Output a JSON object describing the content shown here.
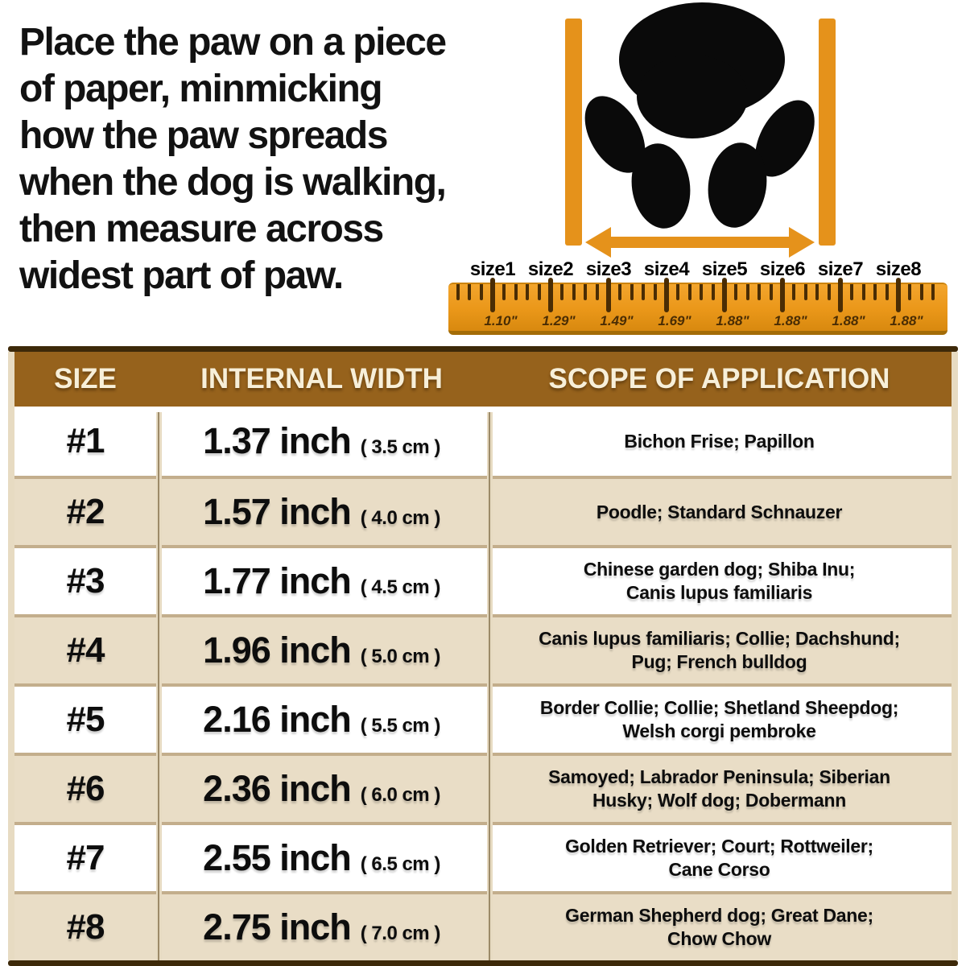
{
  "instructions": {
    "lines": [
      "Place the paw on a piece",
      "of paper, minmicking",
      "how the paw spreads",
      "when the dog is walking,",
      "then measure across",
      "widest part of paw."
    ]
  },
  "icons": {
    "paw_print": "black dog paw print",
    "width_arrow": "double-headed horizontal arrow",
    "measure_bars": "two vertical measuring bars"
  },
  "ruler": {
    "sizes": [
      {
        "label": "size1",
        "value": "1.10\""
      },
      {
        "label": "size2",
        "value": "1.29\""
      },
      {
        "label": "size3",
        "value": "1.49\""
      },
      {
        "label": "size4",
        "value": "1.69\""
      },
      {
        "label": "size5",
        "value": "1.88\""
      },
      {
        "label": "size6",
        "value": "1.88\""
      },
      {
        "label": "size7",
        "value": "1.88\""
      },
      {
        "label": "size8",
        "value": "1.88\""
      }
    ]
  },
  "table": {
    "headers": [
      "SIZE",
      "INTERNAL WIDTH",
      "SCOPE OF APPLICATION"
    ],
    "rows": [
      {
        "size": "#1",
        "inch": "1.37 inch",
        "cm": "( 3.5 cm )",
        "scope_lines": [
          "Bichon Frise; Papillon"
        ]
      },
      {
        "size": "#2",
        "inch": "1.57 inch",
        "cm": "( 4.0 cm )",
        "scope_lines": [
          "Poodle; Standard Schnauzer"
        ]
      },
      {
        "size": "#3",
        "inch": "1.77 inch",
        "cm": "( 4.5 cm )",
        "scope_lines": [
          "Chinese garden dog; Shiba Inu;",
          "Canis lupus familiaris"
        ]
      },
      {
        "size": "#4",
        "inch": "1.96 inch",
        "cm": "( 5.0 cm )",
        "scope_lines": [
          "Canis lupus familiaris; Collie; Dachshund;",
          "Pug; French bulldog"
        ]
      },
      {
        "size": "#5",
        "inch": "2.16 inch",
        "cm": "( 5.5 cm )",
        "scope_lines": [
          "Border Collie; Collie; Shetland Sheepdog;",
          "Welsh corgi pembroke"
        ]
      },
      {
        "size": "#6",
        "inch": "2.36 inch",
        "cm": "( 6.0 cm )",
        "scope_lines": [
          "Samoyed; Labrador Peninsula; Siberian",
          "Husky; Wolf dog; Dobermann"
        ]
      },
      {
        "size": "#7",
        "inch": "2.55 inch",
        "cm": "( 6.5 cm )",
        "scope_lines": [
          "Golden Retriever; Court; Rottweiler;",
          "Cane Corso"
        ]
      },
      {
        "size": "#8",
        "inch": "2.75 inch",
        "cm": "( 7.0 cm )",
        "scope_lines": [
          "German Shepherd dog; Great Dane;",
          "Chow Chow"
        ]
      }
    ]
  },
  "colors": {
    "accent_orange": "#e5921b",
    "ruler_orange": "#ea9719",
    "header_brown": "#96621c",
    "dark_brown_bar": "#3d2909",
    "row_beige": "#e9ddc6",
    "border_tan": "#c3ae8c",
    "divider_tan": "#9c8a68",
    "header_text_cream": "#f7efd9",
    "tick_brown": "#4a2d04",
    "text_black": "#0d0d0d"
  }
}
